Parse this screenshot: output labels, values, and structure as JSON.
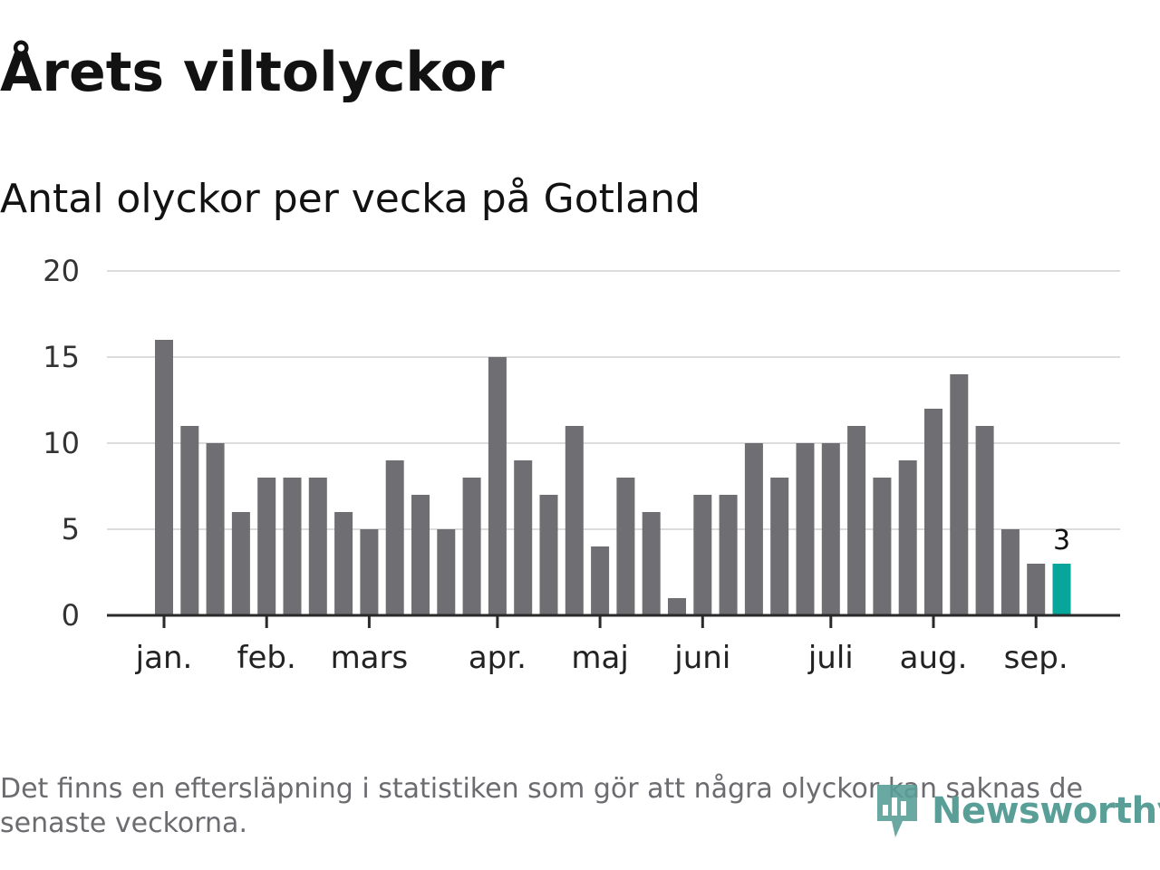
{
  "header": {
    "title": "Årets viltolyckor",
    "subtitle": "Antal olyckor per vecka på Gotland"
  },
  "footer": {
    "note": "Det finns en eftersläpning i statistiken som gör att några olyckor kan saknas de senaste veckorna.",
    "brand": "Newsworthy"
  },
  "colors": {
    "bar": "#6e6e73",
    "highlight": "#08a69a",
    "grid": "#dcdcdc",
    "axis": "#2a2a2a",
    "brand": "#5a9e98"
  },
  "chart_data": {
    "type": "bar",
    "values": [
      16,
      11,
      10,
      6,
      8,
      8,
      8,
      6,
      5,
      9,
      7,
      5,
      8,
      15,
      9,
      7,
      11,
      4,
      8,
      6,
      1,
      7,
      7,
      10,
      8,
      10,
      10,
      11,
      8,
      9,
      12,
      14,
      11,
      5,
      3,
      3
    ],
    "highlight_index": 35,
    "highlight_label": "3",
    "ylim": [
      0,
      20
    ],
    "yticks": [
      0,
      5,
      10,
      15,
      20
    ],
    "month_labels": [
      {
        "label": "jan.",
        "week": 1
      },
      {
        "label": "feb.",
        "week": 5
      },
      {
        "label": "mars",
        "week": 9
      },
      {
        "label": "apr.",
        "week": 14
      },
      {
        "label": "maj",
        "week": 18
      },
      {
        "label": "juni",
        "week": 22
      },
      {
        "label": "juli",
        "week": 27
      },
      {
        "label": "aug.",
        "week": 31
      },
      {
        "label": "sep.",
        "week": 35
      }
    ],
    "grid": true
  }
}
